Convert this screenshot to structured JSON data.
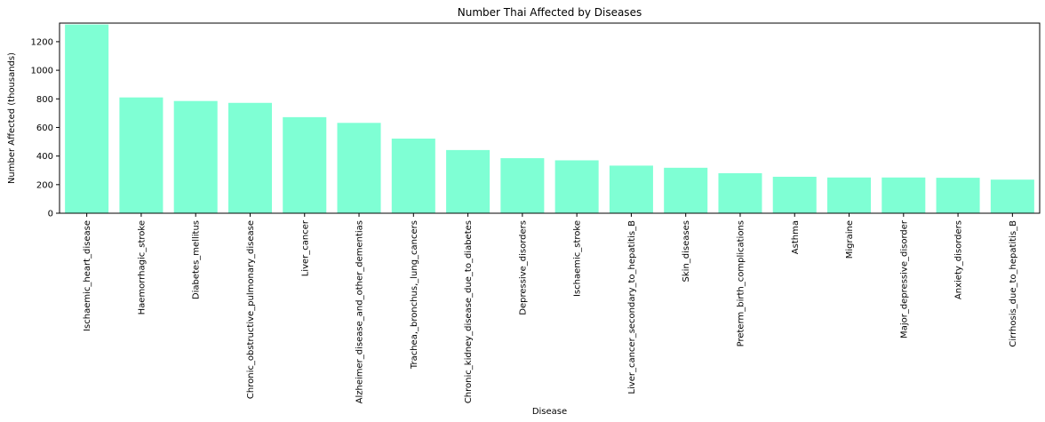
{
  "chart_data": {
    "type": "bar",
    "title": "Number Thai Affected by Diseases",
    "xlabel": "Disease",
    "ylabel": "Number Affected (thousands)",
    "ylim": [
      0,
      1330
    ],
    "yticks": [
      0,
      200,
      400,
      600,
      800,
      1000,
      1200
    ],
    "grid": false,
    "bar_color": "#7fffd4",
    "categories": [
      "Ischaemic_heart_disease",
      "Haemorrhagic_stroke",
      "Diabetes_mellitus",
      "Chronic_obstructive_pulmonary_disease",
      "Liver_cancer",
      "Alzheimer_disease_and_other_dementias",
      "Trachea,_bronchus,_lung_cancers",
      "Chronic_kidney_disease_due_to_diabetes",
      "Depressive_disorders",
      "Ischaemic_stroke",
      "Liver_cancer_secondary_to_hepatitis_B",
      "Skin_diseases",
      "Preterm_birth_complications",
      "Asthma",
      "Migraine",
      "Major_depressive_disorder",
      "Anxiety_disorders",
      "Cirrhosis_due_to_hepatitis_B"
    ],
    "values": [
      1320,
      810,
      785,
      772,
      672,
      632,
      522,
      442,
      385,
      370,
      333,
      318,
      280,
      255,
      250,
      250,
      248,
      235
    ]
  }
}
